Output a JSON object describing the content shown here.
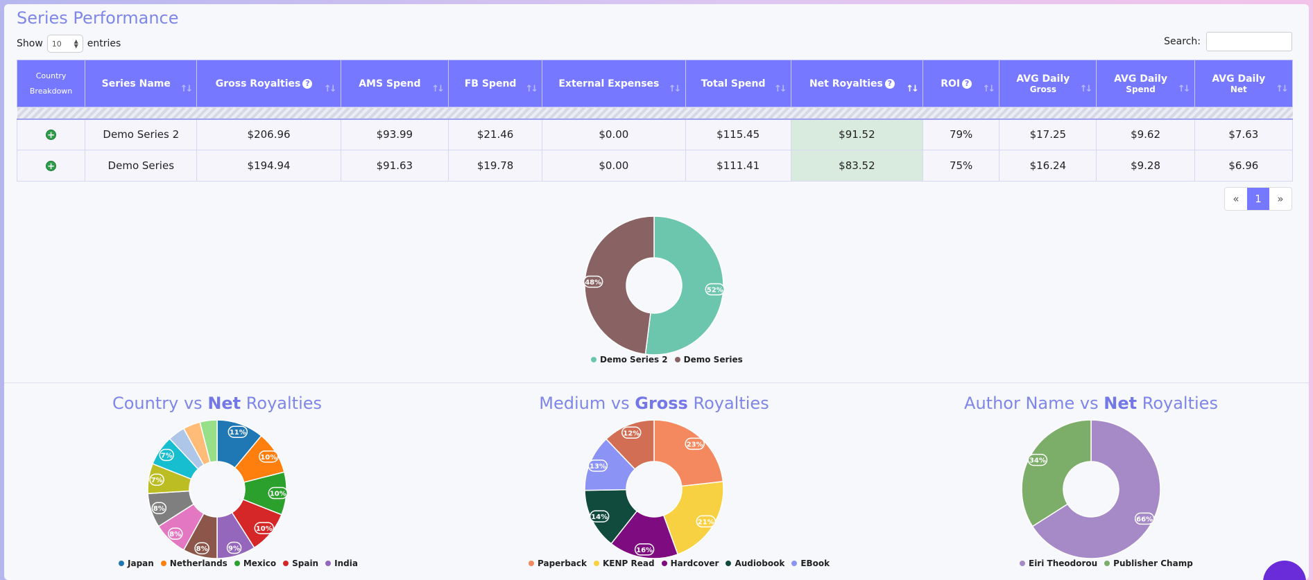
{
  "page": {
    "title": "Series Performance",
    "show_label": "Show",
    "entries_value": "10",
    "entries_label": "entries",
    "search_label": "Search:",
    "search_value": ""
  },
  "table": {
    "headers": {
      "country_breakdown_line1": "Country",
      "country_breakdown_line2": "Breakdown",
      "series_name": "Series Name",
      "gross_royalties": "Gross Royalties",
      "ams_spend": "AMS Spend",
      "fb_spend": "FB Spend",
      "external_expenses": "External Expenses",
      "total_spend": "Total Spend",
      "net_royalties": "Net Royalties",
      "roi": "ROI",
      "avg_daily_gross_1": "AVG Daily",
      "avg_daily_gross_2": "Gross",
      "avg_daily_spend_1": "AVG Daily",
      "avg_daily_spend_2": "Spend",
      "avg_daily_net_1": "AVG Daily",
      "avg_daily_net_2": "Net"
    },
    "rows": [
      {
        "series_name": "Demo Series 2",
        "gross": "$206.96",
        "ams": "$93.99",
        "fb": "$21.46",
        "external": "$0.00",
        "total": "$115.45",
        "net": "$91.52",
        "roi": "79%",
        "avg_gross": "$17.25",
        "avg_spend": "$9.62",
        "avg_net": "$7.63"
      },
      {
        "series_name": "Demo Series",
        "gross": "$194.94",
        "ams": "$91.63",
        "fb": "$19.78",
        "external": "$0.00",
        "total": "$111.41",
        "net": "$83.52",
        "roi": "75%",
        "avg_gross": "$16.24",
        "avg_spend": "$9.28",
        "avg_net": "$6.96"
      }
    ]
  },
  "pagination": {
    "prev": "«",
    "current": "1",
    "next": "»"
  },
  "charts": {
    "country_title_pre": "Country vs",
    "country_title_bold": "Net",
    "country_title_post": "Royalties",
    "medium_title_pre": "Medium vs",
    "medium_title_bold": "Gross",
    "medium_title_post": "Royalties",
    "author_title_pre": "Author Name vs",
    "author_title_bold": "Net",
    "author_title_post": "Royalties"
  },
  "chart_data": [
    {
      "type": "pie",
      "donut": true,
      "categories": [
        "Demo Series 2",
        "Demo Series"
      ],
      "values": [
        52,
        48
      ],
      "labels": [
        "52%",
        "48%"
      ],
      "colors": [
        "#6cc6ae",
        "#896363"
      ],
      "legend": "bottom"
    },
    {
      "type": "pie",
      "donut": true,
      "title": "Country vs Net Royalties",
      "categories": [
        "Japan",
        "Netherlands",
        "Mexico",
        "Spain",
        "India",
        "",
        "",
        "",
        "",
        "",
        "",
        "",
        ""
      ],
      "legend_entries": [
        "Japan",
        "Netherlands",
        "Mexico",
        "Spain",
        "India"
      ],
      "values": [
        11,
        10,
        10,
        10,
        9,
        8,
        8,
        8,
        7,
        7,
        4,
        4,
        4
      ],
      "labels": [
        "11%",
        "10%",
        "10%",
        "10%",
        "9%",
        "8%",
        "8%",
        "8%",
        "7%",
        "7%",
        "",
        "",
        ""
      ],
      "colors": [
        "#1f77b4",
        "#ff7f0e",
        "#2ca02c",
        "#d62728",
        "#9467bd",
        "#8c564b",
        "#e377c2",
        "#7f7f7f",
        "#bcbd22",
        "#17becf",
        "#aec7e8",
        "#ffbb78",
        "#98df8a"
      ],
      "legend": "bottom"
    },
    {
      "type": "pie",
      "donut": true,
      "title": "Medium vs Gross Royalties",
      "categories": [
        "Paperback",
        "KENP Read",
        "Hardcover",
        "Audiobook",
        "EBook",
        ""
      ],
      "legend_entries": [
        "Paperback",
        "KENP Read",
        "Hardcover",
        "Audiobook",
        "EBook"
      ],
      "values": [
        23,
        21,
        16,
        14,
        13,
        12
      ],
      "labels": [
        "23%",
        "21%",
        "16%",
        "14%",
        "13%",
        "12%"
      ],
      "colors": [
        "#f4895f",
        "#f8d143",
        "#7e0b7f",
        "#114b3e",
        "#8b93f5",
        "#d26e53"
      ],
      "legend": "bottom"
    },
    {
      "type": "pie",
      "donut": true,
      "title": "Author Name vs Net Royalties",
      "categories": [
        "Eiri Theodorou",
        "Publisher Champ"
      ],
      "values": [
        66,
        34
      ],
      "labels": [
        "66%",
        "34%"
      ],
      "colors": [
        "#a58ac7",
        "#7cae6a"
      ],
      "legend": "bottom"
    }
  ]
}
